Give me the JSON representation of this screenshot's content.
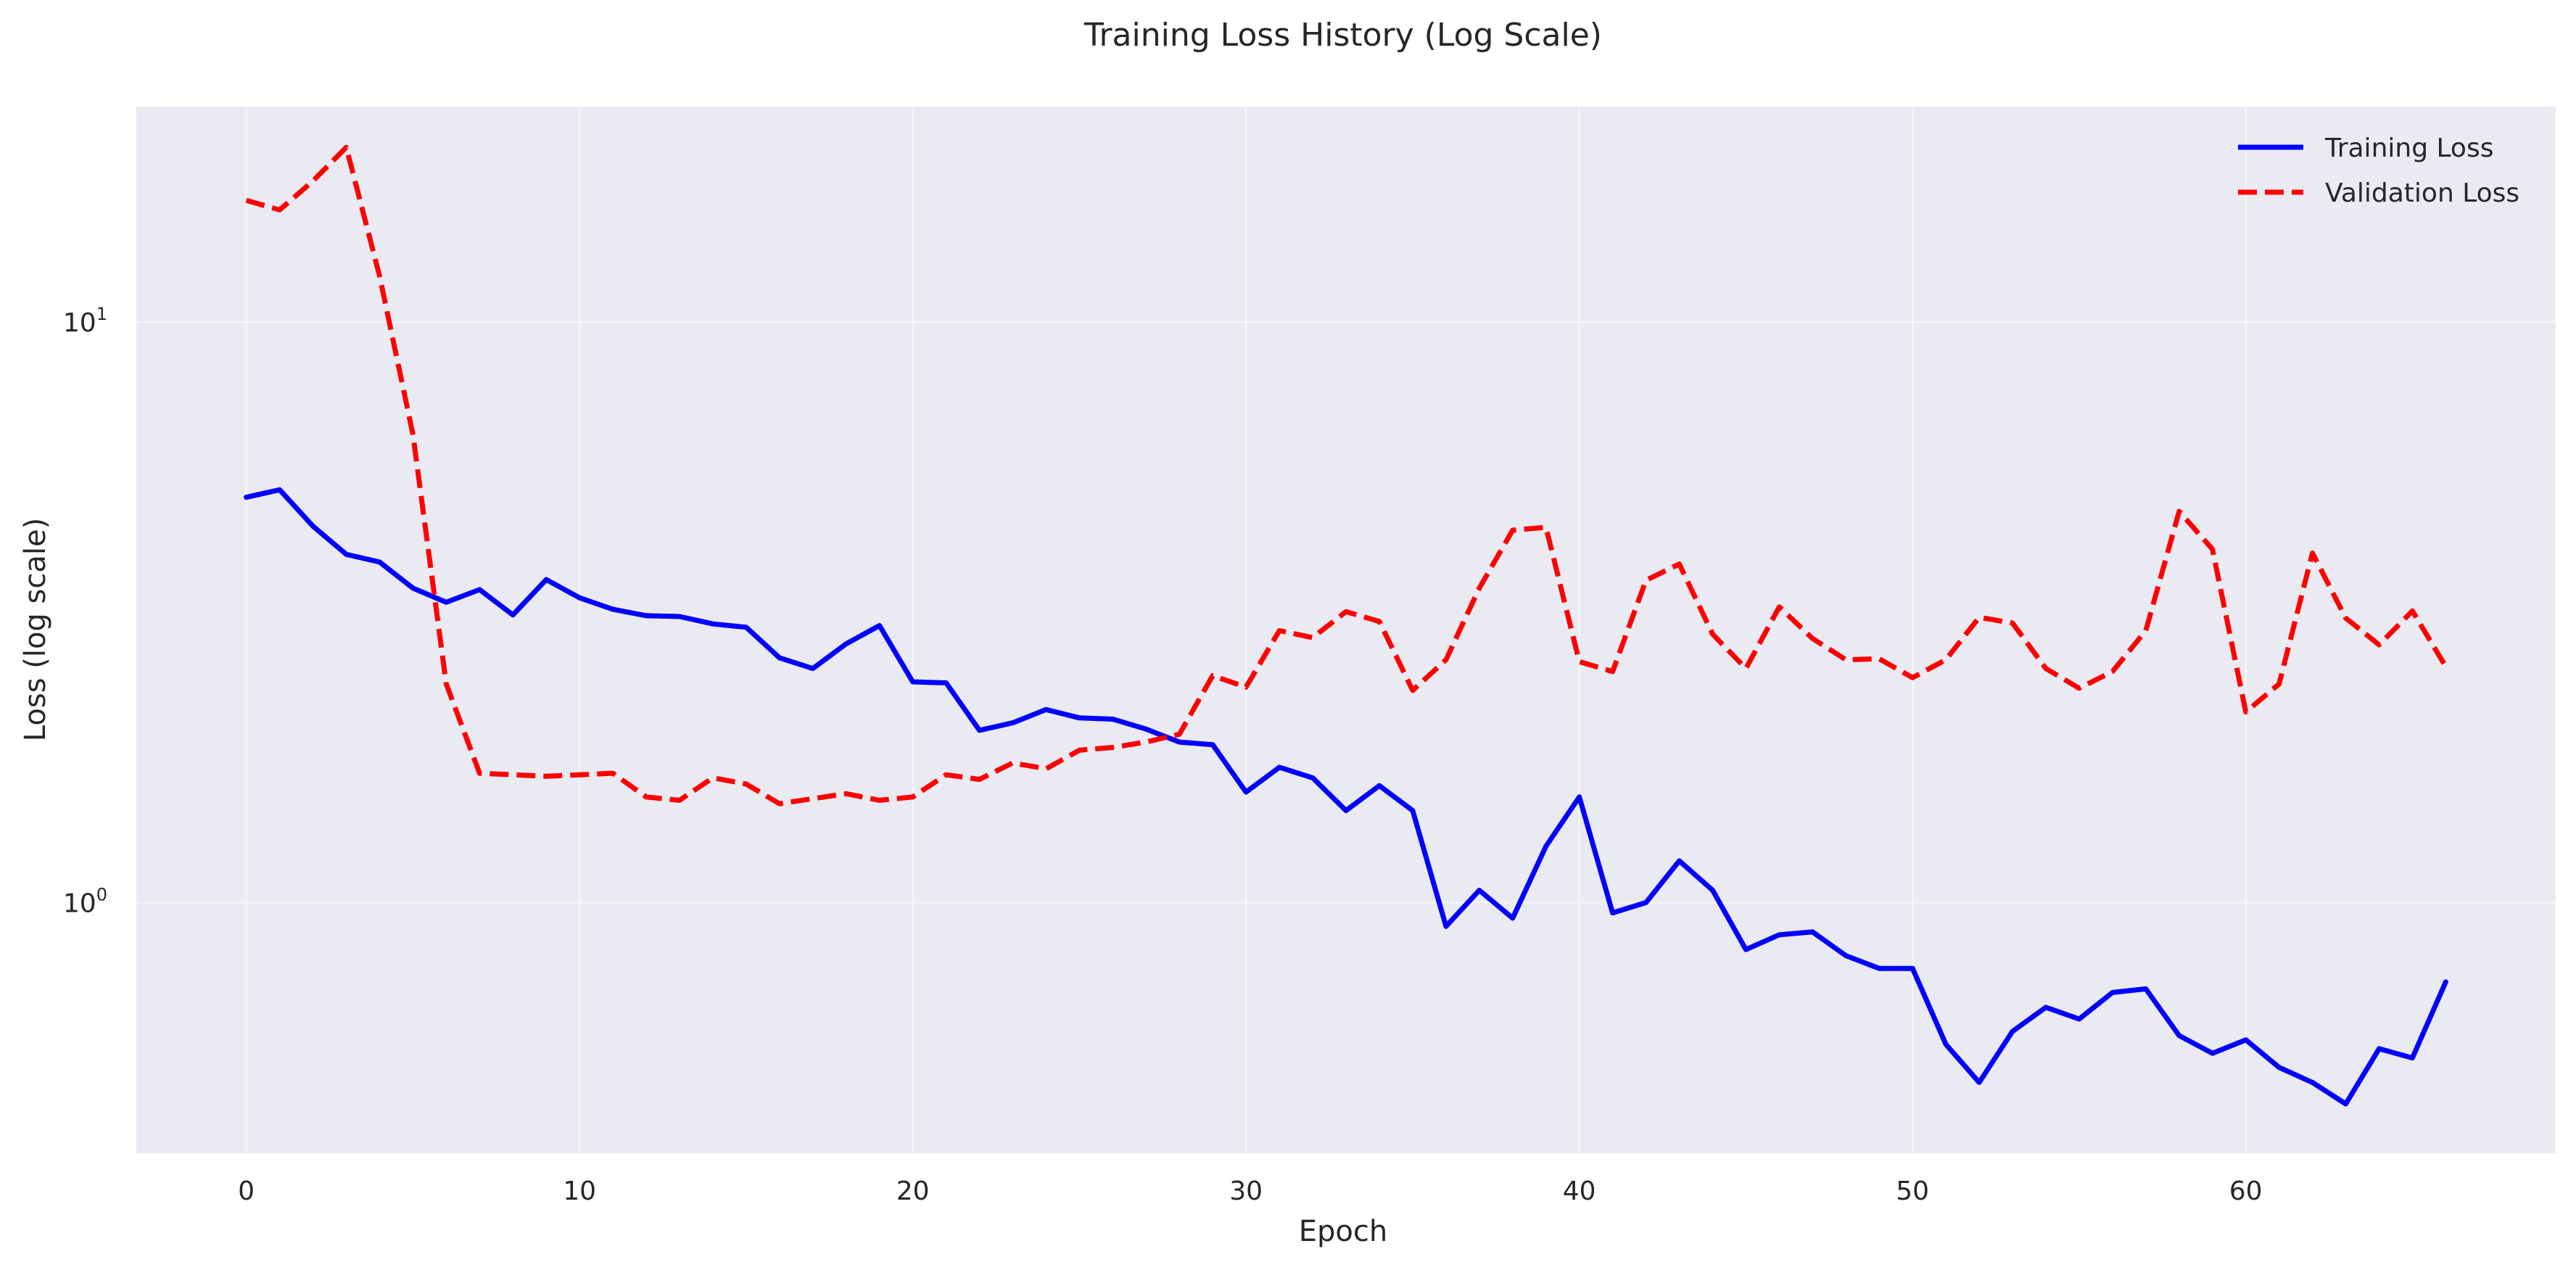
{
  "chart_data": {
    "type": "line",
    "title": "Training Loss History (Log Scale)",
    "xlabel": "Epoch",
    "ylabel": "Loss (log scale)",
    "xlim": [
      -3.3,
      69.3
    ],
    "ylim": [
      0.37,
      23.5
    ],
    "yscale": "log",
    "grid": true,
    "legend_position": "top-right",
    "x_ticks": [
      0,
      10,
      20,
      30,
      40,
      50,
      60
    ],
    "x_tick_labels": [
      "0",
      "10",
      "20",
      "30",
      "40",
      "50",
      "60"
    ],
    "y_ticks": [
      1,
      10
    ],
    "y_tick_labels": [
      {
        "base": "10",
        "exp": "0"
      },
      {
        "base": "10",
        "exp": "1"
      }
    ],
    "x": [
      0,
      1,
      2,
      3,
      4,
      5,
      6,
      7,
      8,
      9,
      10,
      11,
      12,
      13,
      14,
      15,
      16,
      17,
      18,
      19,
      20,
      21,
      22,
      23,
      24,
      25,
      26,
      27,
      28,
      29,
      30,
      31,
      32,
      33,
      34,
      35,
      36,
      37,
      38,
      39,
      40,
      41,
      42,
      43,
      44,
      45,
      46,
      47,
      48,
      49,
      50,
      51,
      52,
      53,
      54,
      55,
      56,
      57,
      58,
      59,
      60,
      61,
      62,
      63,
      64,
      65,
      66
    ],
    "series": [
      {
        "name": "Training Loss",
        "color": "#0000ff",
        "style": "solid",
        "values": [
          4.99,
          5.14,
          4.45,
          3.98,
          3.86,
          3.48,
          3.29,
          3.46,
          3.13,
          3.6,
          3.35,
          3.2,
          3.12,
          3.11,
          3.02,
          2.98,
          2.64,
          2.53,
          2.79,
          3.0,
          2.4,
          2.39,
          1.98,
          2.04,
          2.15,
          2.08,
          2.07,
          1.99,
          1.89,
          1.87,
          1.55,
          1.71,
          1.64,
          1.44,
          1.59,
          1.44,
          0.91,
          1.05,
          0.94,
          1.25,
          1.52,
          0.96,
          1.0,
          1.18,
          1.05,
          0.83,
          0.88,
          0.89,
          0.81,
          0.77,
          0.77,
          0.57,
          0.49,
          0.6,
          0.66,
          0.63,
          0.7,
          0.71,
          0.59,
          0.55,
          0.58,
          0.52,
          0.49,
          0.45,
          0.56,
          0.54,
          0.73
        ]
      },
      {
        "name": "Validation Loss",
        "color": "#ff0000",
        "style": "dashed",
        "values": [
          16.2,
          15.6,
          17.5,
          20.0,
          12.0,
          6.4,
          2.38,
          1.67,
          1.66,
          1.65,
          1.66,
          1.67,
          1.52,
          1.5,
          1.64,
          1.6,
          1.48,
          1.51,
          1.54,
          1.5,
          1.52,
          1.66,
          1.63,
          1.74,
          1.7,
          1.83,
          1.85,
          1.89,
          1.95,
          2.46,
          2.35,
          2.94,
          2.86,
          3.17,
          3.05,
          2.32,
          2.62,
          3.48,
          4.38,
          4.43,
          2.6,
          2.5,
          3.59,
          3.83,
          2.9,
          2.53,
          3.23,
          2.85,
          2.62,
          2.63,
          2.44,
          2.62,
          3.1,
          3.03,
          2.53,
          2.34,
          2.5,
          2.94,
          4.72,
          4.06,
          2.13,
          2.38,
          4.0,
          3.09,
          2.78,
          3.18,
          2.55
        ]
      }
    ]
  }
}
